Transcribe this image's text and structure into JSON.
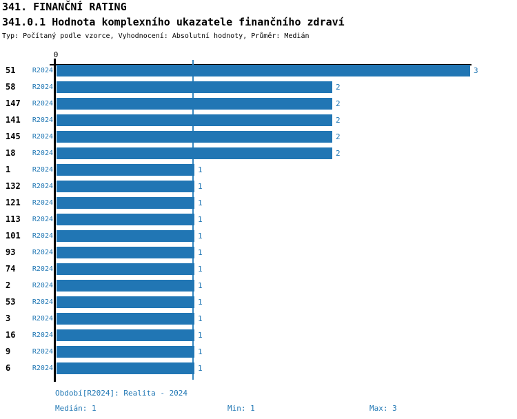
{
  "header": {
    "title": "341. FINANČNÍ RATING",
    "subtitle": "341.0.1 Hodnota komplexního ukazatele finančního zdraví",
    "meta": "Typ: Počítaný podle vzorce, Vyhodnocení: Absolutní hodnoty, Průměr: Medián"
  },
  "chart_data": {
    "type": "bar",
    "orientation": "horizontal",
    "title": "341.0.1 Hodnota komplexního ukazatele finančního zdraví",
    "xlabel": "",
    "ylabel": "",
    "xlim": [
      0,
      3
    ],
    "x_axis_position": "top",
    "x_axis_ticks": [
      "0"
    ],
    "grid": false,
    "series_period": "R2024",
    "categories": [
      "51",
      "58",
      "147",
      "141",
      "145",
      "18",
      "1",
      "132",
      "121",
      "113",
      "101",
      "93",
      "74",
      "2",
      "53",
      "3",
      "16",
      "9",
      "6"
    ],
    "values": [
      3,
      2,
      2,
      2,
      2,
      2,
      1,
      1,
      1,
      1,
      1,
      1,
      1,
      1,
      1,
      1,
      1,
      1,
      1
    ],
    "median_line_value": 1,
    "colors": {
      "bar": "#2176b4",
      "median_line": "#3787bf",
      "blue_text": "#2077b4",
      "axis": "#000000"
    }
  },
  "footer": {
    "period_line": "Období[R2024]: Realita - 2024",
    "median": "Medián: 1",
    "min": "Min: 1",
    "max": "Max: 3"
  }
}
